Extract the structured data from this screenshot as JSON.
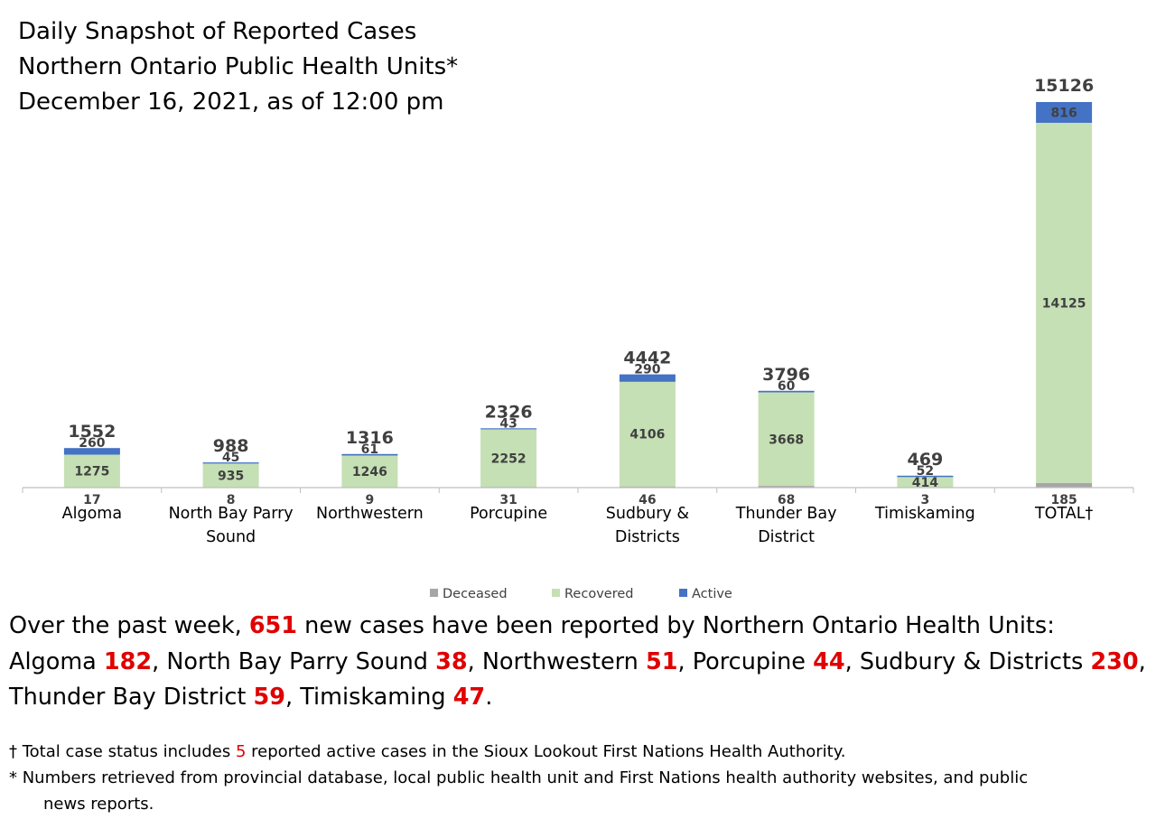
{
  "title": {
    "line1": "Daily Snapshot of Reported Cases",
    "line2": "Northern Ontario Public Health Units*",
    "line3": "December 16, 2021, as of 12:00 pm"
  },
  "colors": {
    "deceased": "#a6a6a6",
    "recovered": "#c5e0b4",
    "active": "#4472c4",
    "highlight": "#e00000"
  },
  "chart_data": {
    "type": "bar",
    "stacked": true,
    "categories": [
      [
        "Algoma"
      ],
      [
        "North Bay Parry",
        "Sound"
      ],
      [
        "Northwestern"
      ],
      [
        "Porcupine"
      ],
      [
        "Sudbury &",
        "Districts"
      ],
      [
        "Thunder Bay",
        "District"
      ],
      [
        "Timiskaming"
      ],
      [
        "TOTAL†"
      ]
    ],
    "series": [
      {
        "name": "Deceased",
        "values": [
          17,
          8,
          9,
          31,
          46,
          68,
          3,
          185
        ]
      },
      {
        "name": "Recovered",
        "values": [
          1275,
          935,
          1246,
          2252,
          4106,
          3668,
          414,
          14125
        ]
      },
      {
        "name": "Active",
        "values": [
          260,
          45,
          61,
          43,
          290,
          60,
          52,
          816
        ]
      }
    ],
    "totals": [
      1552,
      988,
      1316,
      2326,
      4442,
      3796,
      469,
      15126
    ],
    "ylim": [
      0,
      15126
    ],
    "grid": false,
    "legend": "bottom"
  },
  "summary": {
    "intro": "Over the past week, ",
    "total_new": "651",
    "intro_rest": " new cases have been reported by Northern Ontario Health Units:",
    "items": [
      {
        "name": "Algoma",
        "count": "182",
        "sep": ", "
      },
      {
        "name": "North Bay Parry Sound",
        "count": "38",
        "sep": ", "
      },
      {
        "name": "Northwestern",
        "count": "51",
        "sep": ", "
      },
      {
        "name": "Porcupine",
        "count": "44",
        "sep": ", "
      },
      {
        "name": "Sudbury & Districts",
        "count": "230",
        "sep": ","
      },
      {
        "name": "Thunder Bay District",
        "count": "59",
        "sep": ", "
      },
      {
        "name": "Timiskaming",
        "count": "47",
        "sep": "."
      }
    ]
  },
  "notes": {
    "dagger_pre": "† Total case status includes ",
    "dagger_num": "5",
    "dagger_post": " reported active cases in the Sioux Lookout First Nations Health Authority.",
    "star_line1": "* Numbers retrieved from provincial database, local public health unit and First Nations health authority websites, and public",
    "star_line2": "news reports."
  }
}
